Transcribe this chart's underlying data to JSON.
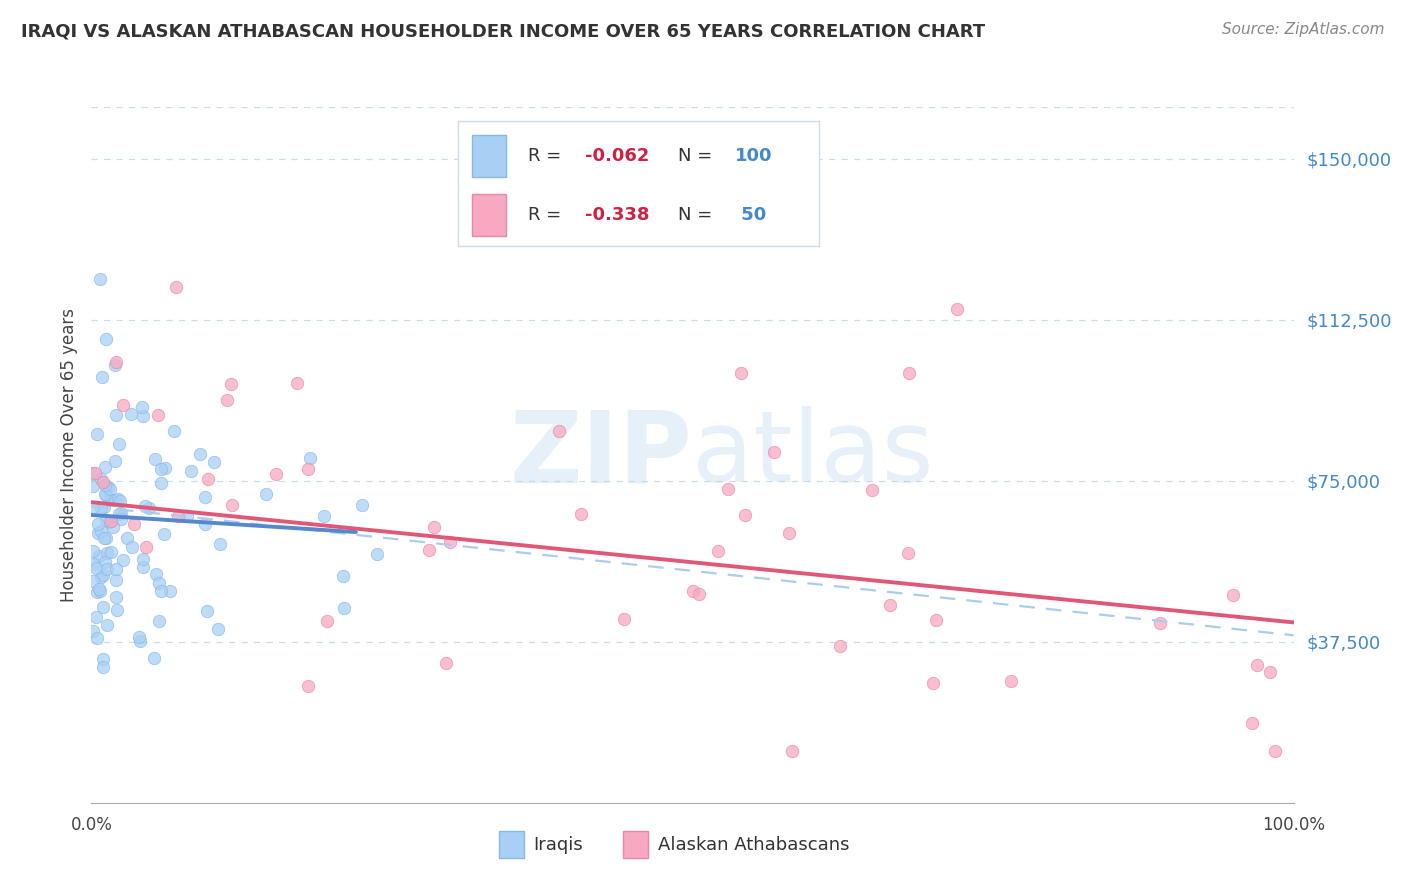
{
  "title": "IRAQI VS ALASKAN ATHABASCAN HOUSEHOLDER INCOME OVER 65 YEARS CORRELATION CHART",
  "source": "Source: ZipAtlas.com",
  "ylabel": "Householder Income Over 65 years",
  "ytick_labels": [
    "$37,500",
    "$75,000",
    "$112,500",
    "$150,000"
  ],
  "ytick_values": [
    37500,
    75000,
    112500,
    150000
  ],
  "ylim": [
    0,
    162000
  ],
  "xlim": [
    0.0,
    1.0
  ],
  "iraqi_color": "#a8d0f5",
  "iraqi_edge_color": "#88b8e8",
  "athabascan_color": "#f8a8c0",
  "athabascan_edge_color": "#e888a8",
  "iraqi_line_color": "#5588cc",
  "athabascan_line_color": "#e05878",
  "iraqi_dash_color": "#aaccee",
  "background_color": "#ffffff",
  "grid_color": "#c8dcea",
  "title_color": "#333333",
  "source_color": "#888888",
  "ytick_color": "#4488cc",
  "watermark_color": "#d8eaf8"
}
